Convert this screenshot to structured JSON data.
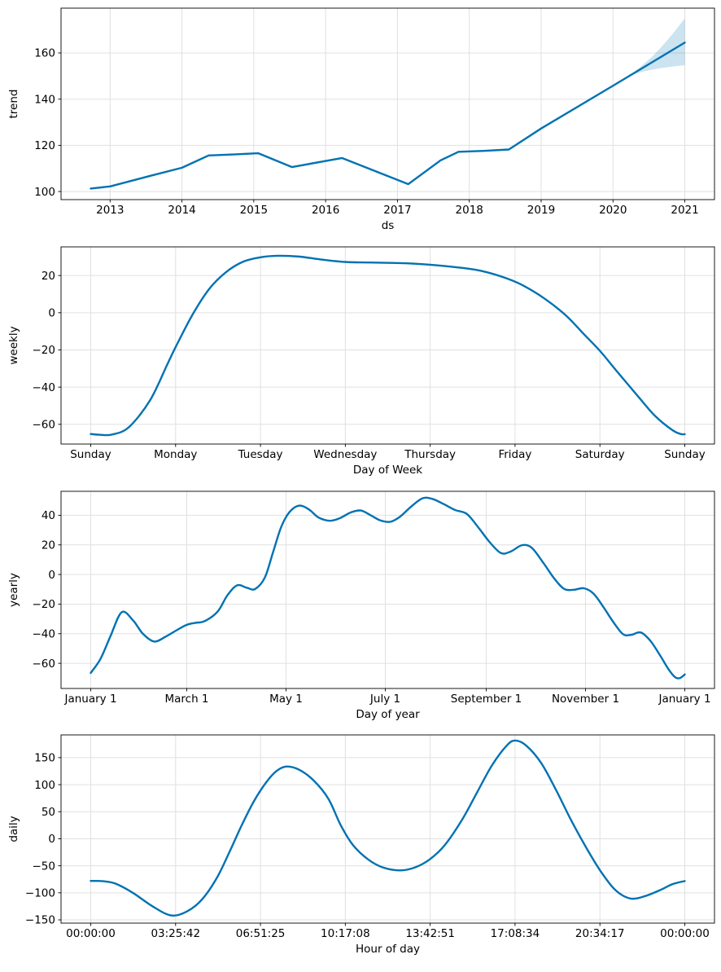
{
  "figure": {
    "background": "#ffffff",
    "grid_color": "#e0e0e0",
    "spine_color": "#000000",
    "line_color": "#0072B2",
    "band_color": "#0072B2",
    "band_opacity": 0.2
  },
  "chart_data": [
    {
      "id": "trend",
      "type": "line",
      "xlabel": "ds",
      "ylabel": "trend",
      "smooth": false,
      "grid": true,
      "legend": null,
      "xlim": [
        2012.317,
        2021.413
      ],
      "ylim": [
        96.5,
        179.4
      ],
      "x_ticks": [
        {
          "v": 2013,
          "label": "2013"
        },
        {
          "v": 2014,
          "label": "2014"
        },
        {
          "v": 2015,
          "label": "2015"
        },
        {
          "v": 2016,
          "label": "2016"
        },
        {
          "v": 2017,
          "label": "2017"
        },
        {
          "v": 2018,
          "label": "2018"
        },
        {
          "v": 2019,
          "label": "2019"
        },
        {
          "v": 2020,
          "label": "2020"
        },
        {
          "v": 2021,
          "label": "2021"
        }
      ],
      "y_ticks": [
        {
          "v": 100,
          "label": "100"
        },
        {
          "v": 120,
          "label": "120"
        },
        {
          "v": 140,
          "label": "140"
        },
        {
          "v": 160,
          "label": "160"
        }
      ],
      "points": [
        [
          2012.73,
          101.3
        ],
        [
          2013.0,
          102.2
        ],
        [
          2013.56,
          106.8
        ],
        [
          2014.0,
          110.3
        ],
        [
          2014.37,
          115.6
        ],
        [
          2014.75,
          116.1
        ],
        [
          2015.06,
          116.6
        ],
        [
          2015.53,
          110.6
        ],
        [
          2016.23,
          114.5
        ],
        [
          2017.15,
          103.2
        ],
        [
          2017.6,
          113.5
        ],
        [
          2017.85,
          117.2
        ],
        [
          2018.2,
          117.6
        ],
        [
          2018.55,
          118.2
        ],
        [
          2019.0,
          127.3
        ],
        [
          2020.0,
          145.8
        ],
        [
          2021.0,
          164.5
        ]
      ],
      "band": {
        "x": [
          2020.25,
          2020.4,
          2020.55,
          2020.7,
          2020.85,
          2021.0
        ],
        "upper": [
          150.7,
          154.5,
          158.5,
          163.5,
          169.0,
          175.0
        ],
        "lower": [
          150.3,
          151.8,
          152.8,
          153.6,
          154.2,
          154.7
        ]
      }
    },
    {
      "id": "weekly",
      "type": "line",
      "xlabel": "Day of Week",
      "ylabel": "weekly",
      "smooth": true,
      "grid": true,
      "legend": null,
      "xlim": [
        -0.35,
        7.35
      ],
      "ylim": [
        -70.6,
        35.4
      ],
      "x_ticks": [
        {
          "v": 0,
          "label": "Sunday"
        },
        {
          "v": 1,
          "label": "Monday"
        },
        {
          "v": 2,
          "label": "Tuesday"
        },
        {
          "v": 3,
          "label": "Wednesday"
        },
        {
          "v": 4,
          "label": "Thursday"
        },
        {
          "v": 5,
          "label": "Friday"
        },
        {
          "v": 6,
          "label": "Saturday"
        },
        {
          "v": 7,
          "label": "Sunday"
        }
      ],
      "y_ticks": [
        {
          "v": -60,
          "label": "−60"
        },
        {
          "v": -40,
          "label": "−40"
        },
        {
          "v": -20,
          "label": "−20"
        },
        {
          "v": 0,
          "label": "0"
        },
        {
          "v": 20,
          "label": "20"
        }
      ],
      "points": [
        [
          0,
          -65.2
        ],
        [
          0.1,
          -65.6
        ],
        [
          0.25,
          -65.5
        ],
        [
          0.45,
          -61.5
        ],
        [
          0.7,
          -47
        ],
        [
          0.9,
          -28
        ],
        [
          1.0,
          -18.5
        ],
        [
          1.2,
          -1
        ],
        [
          1.4,
          13
        ],
        [
          1.6,
          22
        ],
        [
          1.8,
          27.5
        ],
        [
          2.0,
          29.8
        ],
        [
          2.2,
          30.6
        ],
        [
          2.45,
          30.2
        ],
        [
          2.7,
          28.7
        ],
        [
          3.0,
          27.3
        ],
        [
          3.3,
          27.0
        ],
        [
          3.7,
          26.6
        ],
        [
          4.0,
          25.8
        ],
        [
          4.3,
          24.5
        ],
        [
          4.6,
          22.5
        ],
        [
          4.9,
          18.5
        ],
        [
          5.1,
          14.5
        ],
        [
          5.35,
          7.5
        ],
        [
          5.6,
          -1.5
        ],
        [
          5.8,
          -11
        ],
        [
          6.0,
          -20.5
        ],
        [
          6.2,
          -31.5
        ],
        [
          6.45,
          -45
        ],
        [
          6.65,
          -55.5
        ],
        [
          6.85,
          -63
        ],
        [
          6.95,
          -65.2
        ],
        [
          7.0,
          -65.3
        ]
      ],
      "band": null
    },
    {
      "id": "yearly",
      "type": "line",
      "xlabel": "Day of year",
      "ylabel": "yearly",
      "smooth": true,
      "grid": true,
      "legend": null,
      "xlim": [
        -18.25,
        383.25
      ],
      "ylim": [
        -77.0,
        56.2
      ],
      "x_ticks": [
        {
          "v": 0,
          "label": "January 1"
        },
        {
          "v": 59,
          "label": "March 1"
        },
        {
          "v": 120,
          "label": "May 1"
        },
        {
          "v": 181,
          "label": "July 1"
        },
        {
          "v": 243,
          "label": "September 1"
        },
        {
          "v": 304,
          "label": "November 1"
        },
        {
          "v": 365,
          "label": "January 1"
        }
      ],
      "y_ticks": [
        {
          "v": -60,
          "label": "−60"
        },
        {
          "v": -40,
          "label": "−40"
        },
        {
          "v": -20,
          "label": "−20"
        },
        {
          "v": 0,
          "label": "0"
        },
        {
          "v": 20,
          "label": "20"
        },
        {
          "v": 40,
          "label": "40"
        }
      ],
      "points": [
        [
          0,
          -66.5
        ],
        [
          6,
          -57
        ],
        [
          12,
          -42
        ],
        [
          19,
          -25.5
        ],
        [
          26,
          -31
        ],
        [
          32,
          -40
        ],
        [
          39,
          -45.3
        ],
        [
          46,
          -42
        ],
        [
          53,
          -37.5
        ],
        [
          59,
          -34
        ],
        [
          64,
          -32.7
        ],
        [
          70,
          -31.5
        ],
        [
          78,
          -25
        ],
        [
          84,
          -14
        ],
        [
          90,
          -7.3
        ],
        [
          96,
          -9
        ],
        [
          101,
          -9.8
        ],
        [
          107,
          -2
        ],
        [
          112,
          15
        ],
        [
          117,
          32
        ],
        [
          122,
          42
        ],
        [
          128,
          46.5
        ],
        [
          134,
          44
        ],
        [
          140,
          38.5
        ],
        [
          147,
          36.3
        ],
        [
          153,
          38
        ],
        [
          160,
          42
        ],
        [
          166,
          43.2
        ],
        [
          172,
          40
        ],
        [
          178,
          36.5
        ],
        [
          184,
          35.6
        ],
        [
          190,
          39
        ],
        [
          197,
          46
        ],
        [
          204,
          51.5
        ],
        [
          210,
          51
        ],
        [
          217,
          47.5
        ],
        [
          224,
          43.5
        ],
        [
          231,
          41
        ],
        [
          238,
          32
        ],
        [
          245,
          22
        ],
        [
          252,
          14.5
        ],
        [
          258,
          15.5
        ],
        [
          265,
          19.8
        ],
        [
          271,
          18
        ],
        [
          278,
          8
        ],
        [
          285,
          -3
        ],
        [
          291,
          -9.8
        ],
        [
          297,
          -10.3
        ],
        [
          303,
          -9.3
        ],
        [
          309,
          -13
        ],
        [
          315,
          -22
        ],
        [
          321,
          -32
        ],
        [
          327,
          -40.3
        ],
        [
          332,
          -40.8
        ],
        [
          338,
          -39.2
        ],
        [
          344,
          -45
        ],
        [
          350,
          -55
        ],
        [
          355,
          -64
        ],
        [
          359,
          -69.3
        ],
        [
          362,
          -70
        ],
        [
          365,
          -67.5
        ]
      ],
      "band": null
    },
    {
      "id": "daily",
      "type": "line",
      "xlabel": "Hour of day",
      "ylabel": "daily",
      "smooth": true,
      "grid": true,
      "legend": null,
      "xlim": [
        -1.2,
        25.2
      ],
      "ylim": [
        -156.0,
        192.0
      ],
      "x_ticks": [
        {
          "v": 0,
          "label": "00:00:00"
        },
        {
          "v": 3.42857,
          "label": "03:25:42"
        },
        {
          "v": 6.85714,
          "label": "06:51:25"
        },
        {
          "v": 10.28571,
          "label": "10:17:08"
        },
        {
          "v": 13.71429,
          "label": "13:42:51"
        },
        {
          "v": 17.14286,
          "label": "17:08:34"
        },
        {
          "v": 20.57143,
          "label": "20:34:17"
        },
        {
          "v": 24,
          "label": "00:00:00"
        }
      ],
      "y_ticks": [
        {
          "v": -150,
          "label": "−150"
        },
        {
          "v": -100,
          "label": "−100"
        },
        {
          "v": -50,
          "label": "−50"
        },
        {
          "v": 0,
          "label": "0"
        },
        {
          "v": 50,
          "label": "50"
        },
        {
          "v": 100,
          "label": "100"
        },
        {
          "v": 150,
          "label": "150"
        }
      ],
      "points": [
        [
          0,
          -78
        ],
        [
          0.5,
          -78.5
        ],
        [
          1,
          -83
        ],
        [
          1.7,
          -100
        ],
        [
          2.5,
          -125
        ],
        [
          3.25,
          -141.8
        ],
        [
          3.9,
          -134
        ],
        [
          4.5,
          -112
        ],
        [
          5.1,
          -72
        ],
        [
          5.6,
          -25
        ],
        [
          6.1,
          25
        ],
        [
          6.6,
          70
        ],
        [
          7.1,
          105
        ],
        [
          7.5,
          125
        ],
        [
          7.9,
          133.5
        ],
        [
          8.4,
          128
        ],
        [
          9.0,
          108
        ],
        [
          9.6,
          74
        ],
        [
          10.1,
          25
        ],
        [
          10.6,
          -12
        ],
        [
          11.2,
          -38
        ],
        [
          11.8,
          -53
        ],
        [
          12.5,
          -58.5
        ],
        [
          13.1,
          -53
        ],
        [
          13.7,
          -38
        ],
        [
          14.3,
          -12
        ],
        [
          15.0,
          35
        ],
        [
          15.6,
          85
        ],
        [
          16.2,
          135
        ],
        [
          16.8,
          172
        ],
        [
          17.15,
          181.5
        ],
        [
          17.6,
          172
        ],
        [
          18.2,
          140
        ],
        [
          18.8,
          90
        ],
        [
          19.4,
          35
        ],
        [
          20.0,
          -15
        ],
        [
          20.6,
          -60
        ],
        [
          21.2,
          -95
        ],
        [
          21.8,
          -110.5
        ],
        [
          22.4,
          -106
        ],
        [
          23.0,
          -95
        ],
        [
          23.5,
          -84
        ],
        [
          24,
          -78.2
        ]
      ],
      "band": null
    }
  ]
}
